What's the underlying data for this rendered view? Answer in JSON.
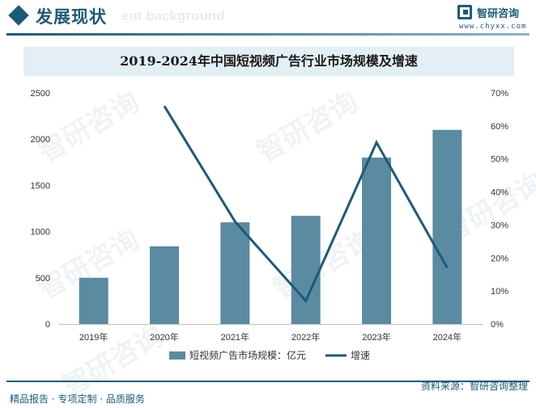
{
  "header": {
    "section_title": "发展现状",
    "watermark_text": "ent background",
    "brand_name": "智研咨询",
    "brand_url": "www.chyxx.com"
  },
  "watermark": "智研咨询",
  "footer": {
    "left_text": "精品报告 · 专项定制 · 品质服务",
    "source_text": "资料来源：智研咨询整理"
  },
  "colors": {
    "bar": "#5b8ba1",
    "line": "#1d5a7a",
    "accent": "#1d5a7a"
  },
  "chart_data": {
    "type": "bar",
    "title": "2019-2024年中国短视频广告行业市场规模及增速",
    "categories": [
      "2019年",
      "2020年",
      "2021年",
      "2022年",
      "2023年",
      "2024年"
    ],
    "series": [
      {
        "name": "短视频广告市场规模：亿元",
        "type": "bar",
        "axis": "left",
        "values": [
          500,
          840,
          1100,
          1170,
          1800,
          2100
        ]
      },
      {
        "name": "增速",
        "type": "line",
        "axis": "right",
        "values": [
          null,
          66,
          31,
          7,
          55,
          17
        ]
      }
    ],
    "y_left": {
      "min": 0,
      "max": 2500,
      "ticks": [
        "0",
        "500",
        "1000",
        "1500",
        "2000",
        "2500"
      ]
    },
    "y_right": {
      "min": 0,
      "max": 70,
      "ticks": [
        "0%",
        "10%",
        "20%",
        "30%",
        "40%",
        "50%",
        "60%",
        "70%"
      ]
    },
    "grid": false,
    "legend_position": "bottom"
  }
}
